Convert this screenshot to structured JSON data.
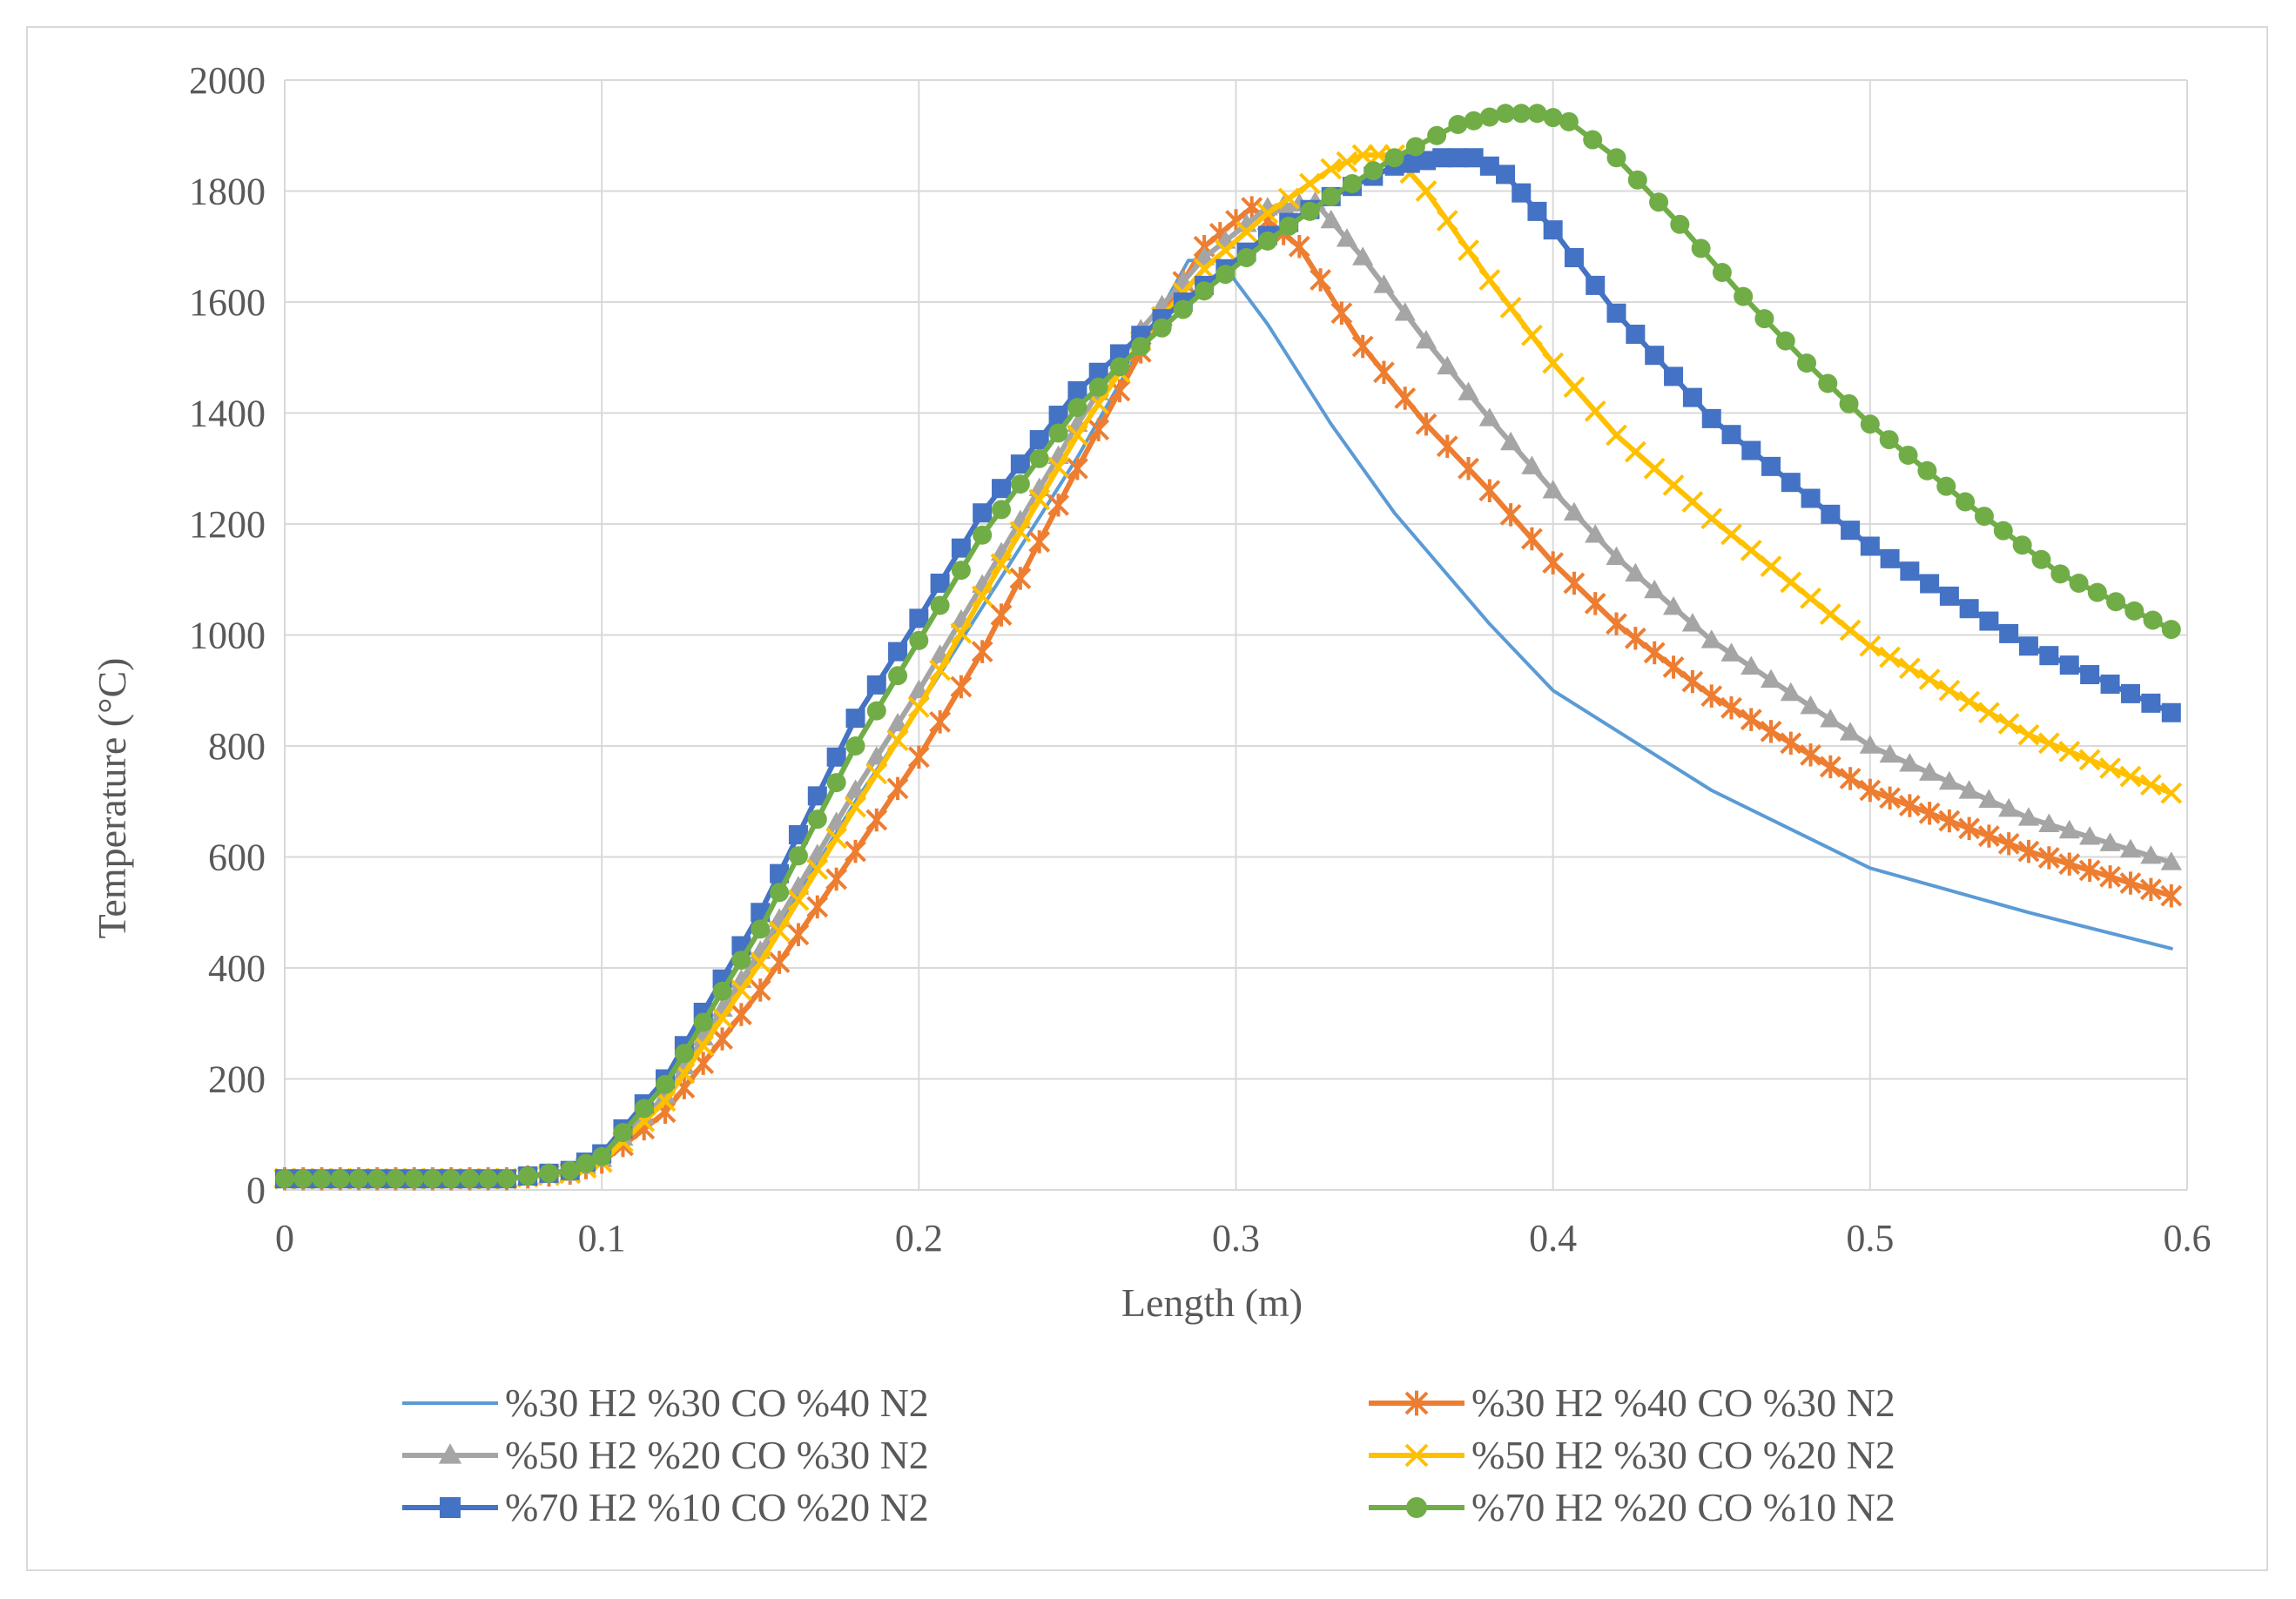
{
  "chart_data": {
    "type": "line",
    "title": "",
    "xlabel": "Length (m)",
    "ylabel": "Temperature (°C)",
    "xlim": [
      0,
      0.6
    ],
    "ylim": [
      0,
      2000
    ],
    "xticks": [
      "0",
      "0.1",
      "0.2",
      "0.3",
      "0.4",
      "0.5",
      "0.6"
    ],
    "yticks": [
      "0",
      "200",
      "400",
      "600",
      "800",
      "1000",
      "1200",
      "1400",
      "1600",
      "1800",
      "2000"
    ],
    "grid": true,
    "legend_position": "bottom",
    "series": [
      {
        "name": "%30 H2 %30 CO  %40 N2",
        "color": "#5b9bd5",
        "marker": "none",
        "x": [
          0,
          0.07,
          0.09,
          0.1,
          0.12,
          0.15,
          0.18,
          0.2,
          0.22,
          0.25,
          0.27,
          0.285,
          0.295,
          0.31,
          0.33,
          0.35,
          0.38,
          0.4,
          0.45,
          0.5,
          0.55,
          0.595
        ],
        "y": [
          20,
          20,
          35,
          60,
          170,
          420,
          700,
          870,
          1050,
          1320,
          1520,
          1675,
          1675,
          1560,
          1380,
          1220,
          1020,
          900,
          720,
          580,
          500,
          435
        ]
      },
      {
        "name": "%30 H2 %40 CO  %30 N2",
        "color": "#ed7d31",
        "marker": "star",
        "x": [
          0,
          0.07,
          0.09,
          0.1,
          0.12,
          0.15,
          0.18,
          0.2,
          0.22,
          0.25,
          0.27,
          0.29,
          0.305,
          0.32,
          0.34,
          0.36,
          0.38,
          0.4,
          0.42,
          0.45,
          0.5,
          0.55,
          0.595
        ],
        "y": [
          20,
          20,
          30,
          50,
          140,
          360,
          610,
          780,
          970,
          1300,
          1510,
          1700,
          1770,
          1700,
          1520,
          1380,
          1260,
          1130,
          1020,
          890,
          720,
          610,
          530
        ]
      },
      {
        "name": "%50 H2 %20 CO  %30 N2",
        "color": "#a5a5a5",
        "marker": "triangle",
        "x": [
          0,
          0.07,
          0.09,
          0.1,
          0.12,
          0.15,
          0.18,
          0.2,
          0.22,
          0.25,
          0.27,
          0.29,
          0.31,
          0.325,
          0.34,
          0.36,
          0.38,
          0.4,
          0.42,
          0.45,
          0.5,
          0.55,
          0.595
        ],
        "y": [
          20,
          20,
          30,
          55,
          170,
          430,
          720,
          900,
          1090,
          1380,
          1550,
          1680,
          1770,
          1780,
          1680,
          1530,
          1390,
          1260,
          1140,
          990,
          800,
          670,
          590
        ]
      },
      {
        "name": "%50 H2 %30 CO  %20 N2",
        "color": "#ffc000",
        "marker": "x",
        "x": [
          0,
          0.07,
          0.09,
          0.1,
          0.12,
          0.15,
          0.18,
          0.2,
          0.22,
          0.25,
          0.27,
          0.29,
          0.31,
          0.33,
          0.34,
          0.35,
          0.36,
          0.38,
          0.4,
          0.42,
          0.45,
          0.5,
          0.55,
          0.595
        ],
        "y": [
          20,
          20,
          30,
          50,
          160,
          410,
          690,
          870,
          1070,
          1360,
          1530,
          1660,
          1760,
          1840,
          1865,
          1865,
          1800,
          1640,
          1490,
          1360,
          1210,
          980,
          820,
          715
        ]
      },
      {
        "name": "%70 H2 %10 CO  %20 N2",
        "color": "#4472c4",
        "marker": "square",
        "x": [
          0,
          0.07,
          0.09,
          0.1,
          0.12,
          0.15,
          0.18,
          0.2,
          0.22,
          0.25,
          0.27,
          0.29,
          0.31,
          0.33,
          0.35,
          0.365,
          0.375,
          0.385,
          0.4,
          0.42,
          0.45,
          0.5,
          0.55,
          0.595
        ],
        "y": [
          20,
          20,
          35,
          65,
          200,
          500,
          850,
          1030,
          1220,
          1440,
          1540,
          1630,
          1720,
          1790,
          1845,
          1860,
          1860,
          1830,
          1730,
          1580,
          1390,
          1160,
          980,
          860
        ]
      },
      {
        "name": "%70 H2 %20 CO  %10 N2",
        "color": "#70ad47",
        "marker": "circle",
        "x": [
          0,
          0.07,
          0.09,
          0.1,
          0.12,
          0.15,
          0.18,
          0.2,
          0.22,
          0.25,
          0.27,
          0.29,
          0.31,
          0.33,
          0.35,
          0.37,
          0.385,
          0.395,
          0.405,
          0.42,
          0.44,
          0.46,
          0.48,
          0.5,
          0.53,
          0.56,
          0.595
        ],
        "y": [
          20,
          20,
          35,
          60,
          190,
          470,
          800,
          990,
          1180,
          1410,
          1520,
          1620,
          1710,
          1790,
          1860,
          1920,
          1940,
          1940,
          1925,
          1860,
          1740,
          1610,
          1490,
          1380,
          1240,
          1110,
          1010
        ]
      }
    ]
  }
}
